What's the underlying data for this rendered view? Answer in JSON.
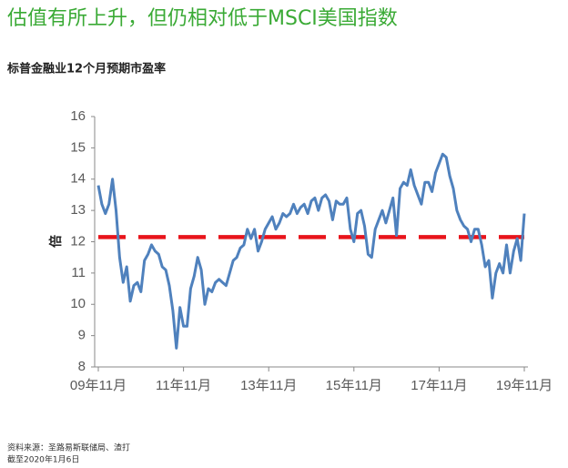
{
  "chart_data": {
    "type": "line",
    "title": "估值有所上升，但仍相对低于MSCI美国指数",
    "subtitle": "标普金融业12个月预期市盈率",
    "y_label": "倍",
    "source": "资料来源：圣路易斯联储局、渣打",
    "note": "截至2020年1月6日",
    "categories": [
      "09年11月",
      null,
      null,
      null,
      null,
      null,
      null,
      null,
      null,
      null,
      null,
      null,
      null,
      null,
      null,
      null,
      null,
      null,
      null,
      null,
      null,
      null,
      null,
      null,
      "11年11月",
      null,
      null,
      null,
      null,
      null,
      null,
      null,
      null,
      null,
      null,
      null,
      null,
      null,
      null,
      null,
      null,
      null,
      null,
      null,
      null,
      null,
      null,
      null,
      "13年11月",
      null,
      null,
      null,
      null,
      null,
      null,
      null,
      null,
      null,
      null,
      null,
      null,
      null,
      null,
      null,
      null,
      null,
      null,
      null,
      null,
      null,
      null,
      null,
      "15年11月",
      null,
      null,
      null,
      null,
      null,
      null,
      null,
      null,
      null,
      null,
      null,
      null,
      null,
      null,
      null,
      null,
      null,
      null,
      null,
      null,
      null,
      null,
      null,
      "17年11月",
      null,
      null,
      null,
      null,
      null,
      null,
      null,
      null,
      null,
      null,
      null,
      null,
      null,
      null,
      null,
      null,
      null,
      null,
      null,
      null,
      null,
      null,
      null,
      "19年11月"
    ],
    "values": [
      13.8,
      13.2,
      12.9,
      13.2,
      14.0,
      13.0,
      11.5,
      10.7,
      11.2,
      10.1,
      10.6,
      10.7,
      10.4,
      11.4,
      11.6,
      11.9,
      11.7,
      11.6,
      11.2,
      11.1,
      10.6,
      9.8,
      8.6,
      9.9,
      9.3,
      9.3,
      10.5,
      10.9,
      11.5,
      11.1,
      10.0,
      10.5,
      10.4,
      10.7,
      10.8,
      10.7,
      10.6,
      11.0,
      11.4,
      11.5,
      11.8,
      11.9,
      12.4,
      12.1,
      12.4,
      11.7,
      12.0,
      12.4,
      12.6,
      12.8,
      12.4,
      12.6,
      12.9,
      12.8,
      12.9,
      13.2,
      12.9,
      13.1,
      13.2,
      12.9,
      13.3,
      13.4,
      13.0,
      13.4,
      13.5,
      13.3,
      12.7,
      13.3,
      13.2,
      13.2,
      13.4,
      12.4,
      12.0,
      12.9,
      13.0,
      12.5,
      11.6,
      11.5,
      12.4,
      12.7,
      13.0,
      12.6,
      13.0,
      13.4,
      12.2,
      13.7,
      13.9,
      13.8,
      14.3,
      13.8,
      13.5,
      13.2,
      13.9,
      13.9,
      13.6,
      14.2,
      14.5,
      14.8,
      14.7,
      14.1,
      13.7,
      13.0,
      12.7,
      12.5,
      12.4,
      12.0,
      12.4,
      12.4,
      11.9,
      11.2,
      11.4,
      10.2,
      11.0,
      11.3,
      11.0,
      11.9,
      11.0,
      11.7,
      12.1,
      11.4,
      12.9
    ],
    "color": "#4f81bd",
    "reference_line": {
      "value": 12.15,
      "color": "#e8141b"
    },
    "ylim": [
      8,
      16
    ],
    "yticks": [
      8,
      9,
      10,
      11,
      12,
      13,
      14,
      15,
      16
    ]
  }
}
